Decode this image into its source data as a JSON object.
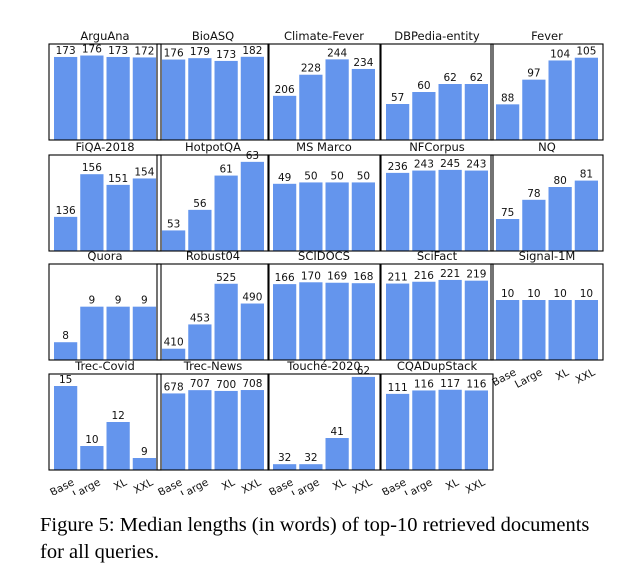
{
  "caption": "Figure 5: Median lengths (in words) of top-10 retrieved documents for all queries.",
  "chart_data": {
    "type": "bar",
    "categories": [
      "Base",
      "Large",
      "XL",
      "XXL"
    ],
    "bar_color": "#6495ed",
    "panels": [
      {
        "title": "ArguAna",
        "values": [
          173,
          176,
          173,
          172
        ],
        "ylim": [
          0,
          200
        ]
      },
      {
        "title": "BioASQ",
        "values": [
          176,
          179,
          173,
          182
        ],
        "ylim": [
          0,
          210
        ]
      },
      {
        "title": "Climate-Fever",
        "values": [
          206,
          228,
          244,
          234
        ],
        "ylim": [
          160,
          260
        ]
      },
      {
        "title": "DBPedia-entity",
        "values": [
          57,
          60,
          62,
          62
        ],
        "ylim": [
          48,
          72
        ]
      },
      {
        "title": "Fever",
        "values": [
          88,
          97,
          104,
          105
        ],
        "ylim": [
          75,
          110
        ]
      },
      {
        "title": "FiQA-2018",
        "values": [
          136,
          156,
          151,
          154
        ],
        "ylim": [
          120,
          165
        ]
      },
      {
        "title": "HotpotQA",
        "values": [
          53,
          56,
          61,
          63
        ],
        "ylim": [
          50,
          64
        ]
      },
      {
        "title": "MS Marco",
        "values": [
          49,
          50,
          50,
          50
        ],
        "ylim": [
          0,
          70
        ]
      },
      {
        "title": "NFCorpus",
        "values": [
          236,
          243,
          245,
          243
        ],
        "ylim": [
          0,
          290
        ]
      },
      {
        "title": "NQ",
        "values": [
          75,
          78,
          80,
          81
        ],
        "ylim": [
          70,
          85
        ]
      },
      {
        "title": "Quora",
        "values": [
          8,
          9,
          9,
          9
        ],
        "ylim": [
          7.5,
          10.2
        ]
      },
      {
        "title": "Robust04",
        "values": [
          410,
          453,
          525,
          490
        ],
        "ylim": [
          390,
          560
        ]
      },
      {
        "title": "SCIDOCS",
        "values": [
          166,
          170,
          169,
          168
        ],
        "ylim": [
          0,
          210
        ]
      },
      {
        "title": "SciFact",
        "values": [
          211,
          216,
          221,
          219
        ],
        "ylim": [
          0,
          265
        ]
      },
      {
        "title": "Signal-1M",
        "values": [
          10,
          10,
          10,
          10
        ],
        "ylim": [
          0,
          16
        ]
      },
      {
        "title": "Trec-Covid",
        "values": [
          15,
          10,
          12,
          9
        ],
        "ylim": [
          8,
          16
        ]
      },
      {
        "title": "Trec-News",
        "values": [
          678,
          707,
          700,
          708
        ],
        "ylim": [
          0,
          850
        ]
      },
      {
        "title": "Touché-2020",
        "values": [
          32,
          32,
          41,
          62
        ],
        "ylim": [
          30,
          63
        ]
      },
      {
        "title": "CQADupStack",
        "values": [
          111,
          116,
          117,
          116
        ],
        "ylim": [
          0,
          140
        ]
      }
    ]
  }
}
